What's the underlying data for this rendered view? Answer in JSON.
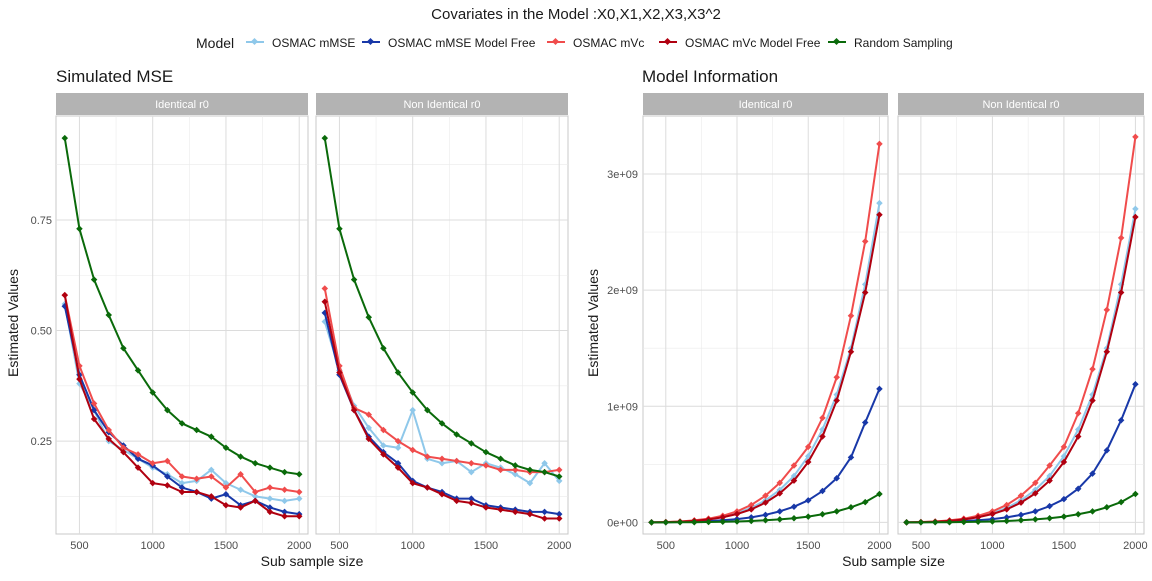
{
  "figure_title": "Covariates in the Model :X0,X1,X2,X3,X3^2",
  "legend": {
    "title": "Model",
    "items": [
      {
        "label": "OSMAC mMSE",
        "color": "#8FC8EA"
      },
      {
        "label": "OSMAC mMSE Model Free",
        "color": "#1838A8"
      },
      {
        "label": "OSMAC mVc",
        "color": "#F04C4C"
      },
      {
        "label": "OSMAC mVc Model Free",
        "color": "#B00010"
      },
      {
        "label": "Random Sampling",
        "color": "#0A6A0A"
      }
    ]
  },
  "chart_data": [
    {
      "type": "line",
      "title": "Simulated MSE",
      "xlabel": "Sub sample size",
      "ylabel": "Estimated Values",
      "x_ticks": [
        "500",
        "1000",
        "1500",
        "2000"
      ],
      "y_ticks": [
        "0.25",
        "0.50",
        "0.75"
      ],
      "xlim": [
        340,
        2060
      ],
      "ylim": [
        0.04,
        0.985
      ],
      "grid": true,
      "x": [
        400,
        500,
        600,
        700,
        800,
        900,
        1000,
        1100,
        1200,
        1300,
        1400,
        1500,
        1600,
        1700,
        1800,
        1900,
        2000
      ],
      "facets": [
        {
          "strip": "Identical r0",
          "series": [
            {
              "name": "OSMAC mMSE",
              "values": [
                0.56,
                0.38,
                0.32,
                0.25,
                0.23,
                0.21,
                0.19,
                0.175,
                0.155,
                0.16,
                0.185,
                0.155,
                0.14,
                0.125,
                0.12,
                0.115,
                0.12
              ]
            },
            {
              "name": "OSMAC mMSE Model Free",
              "values": [
                0.555,
                0.4,
                0.32,
                0.27,
                0.24,
                0.21,
                0.195,
                0.17,
                0.145,
                0.135,
                0.12,
                0.13,
                0.105,
                0.115,
                0.1,
                0.09,
                0.085
              ]
            },
            {
              "name": "OSMAC mVc",
              "values": [
                0.58,
                0.42,
                0.335,
                0.275,
                0.235,
                0.22,
                0.2,
                0.205,
                0.17,
                0.165,
                0.17,
                0.145,
                0.175,
                0.135,
                0.145,
                0.14,
                0.135
              ]
            },
            {
              "name": "OSMAC mVc Model Free",
              "values": [
                0.58,
                0.39,
                0.3,
                0.255,
                0.225,
                0.19,
                0.155,
                0.15,
                0.135,
                0.135,
                0.125,
                0.105,
                0.1,
                0.115,
                0.09,
                0.08,
                0.08
              ]
            },
            {
              "name": "Random Sampling",
              "values": [
                0.935,
                0.73,
                0.615,
                0.535,
                0.46,
                0.41,
                0.36,
                0.32,
                0.29,
                0.275,
                0.26,
                0.235,
                0.215,
                0.2,
                0.19,
                0.18,
                0.175
              ]
            }
          ]
        },
        {
          "strip": "Non Identical r0",
          "series": [
            {
              "name": "OSMAC mMSE",
              "values": [
                0.52,
                0.41,
                0.33,
                0.28,
                0.24,
                0.235,
                0.32,
                0.21,
                0.2,
                0.205,
                0.18,
                0.2,
                0.19,
                0.175,
                0.155,
                0.2,
                0.16
              ]
            },
            {
              "name": "OSMAC mMSE Model Free",
              "values": [
                0.54,
                0.4,
                0.32,
                0.26,
                0.225,
                0.2,
                0.16,
                0.145,
                0.135,
                0.12,
                0.12,
                0.105,
                0.1,
                0.095,
                0.09,
                0.09,
                0.085
              ]
            },
            {
              "name": "OSMAC mVc",
              "values": [
                0.595,
                0.42,
                0.325,
                0.31,
                0.275,
                0.25,
                0.23,
                0.215,
                0.21,
                0.205,
                0.2,
                0.195,
                0.185,
                0.185,
                0.18,
                0.18,
                0.185
              ]
            },
            {
              "name": "OSMAC mVc Model Free",
              "values": [
                0.565,
                0.405,
                0.32,
                0.255,
                0.22,
                0.19,
                0.155,
                0.145,
                0.13,
                0.115,
                0.11,
                0.1,
                0.095,
                0.09,
                0.085,
                0.075,
                0.075
              ]
            },
            {
              "name": "Random Sampling",
              "values": [
                0.935,
                0.73,
                0.615,
                0.53,
                0.46,
                0.405,
                0.36,
                0.32,
                0.29,
                0.265,
                0.245,
                0.225,
                0.21,
                0.195,
                0.185,
                0.18,
                0.17
              ]
            }
          ]
        }
      ]
    },
    {
      "type": "line",
      "title": "Model Information",
      "xlabel": "Sub sample size",
      "ylabel": "Estimated Values",
      "x_ticks": [
        "500",
        "1000",
        "1500",
        "2000"
      ],
      "y_ticks": [
        "0e+00",
        "1e+09",
        "2e+09",
        "3e+09"
      ],
      "xlim": [
        340,
        2060
      ],
      "ylim": [
        -100000000,
        3500000000
      ],
      "grid": true,
      "x": [
        400,
        500,
        600,
        700,
        800,
        900,
        1000,
        1100,
        1200,
        1300,
        1400,
        1500,
        1600,
        1700,
        1800,
        1900,
        2000
      ],
      "facets": [
        {
          "strip": "Identical r0",
          "series": [
            {
              "name": "OSMAC mMSE",
              "values": [
                0,
                2000000,
                7000000,
                15000000,
                28000000,
                50000000,
                80000000,
                125000000,
                190000000,
                280000000,
                400000000,
                570000000,
                800000000,
                1100000000,
                1500000000,
                2050000000,
                2750000000
              ]
            },
            {
              "name": "OSMAC mMSE Model Free",
              "values": [
                0,
                1000000,
                3000000,
                6000000,
                11000000,
                18000000,
                28000000,
                43000000,
                65000000,
                95000000,
                135000000,
                190000000,
                270000000,
                380000000,
                560000000,
                860000000,
                1150000000
              ]
            },
            {
              "name": "OSMAC mVc",
              "values": [
                0,
                3000000,
                8000000,
                17000000,
                32000000,
                57000000,
                95000000,
                150000000,
                230000000,
                340000000,
                490000000,
                650000000,
                900000000,
                1250000000,
                1780000000,
                2420000000,
                3260000000
              ]
            },
            {
              "name": "OSMAC mVc Model Free",
              "values": [
                0,
                2000000,
                6000000,
                13000000,
                25000000,
                44000000,
                72000000,
                112000000,
                170000000,
                250000000,
                360000000,
                520000000,
                740000000,
                1050000000,
                1470000000,
                1980000000,
                2650000000
              ]
            },
            {
              "name": "Random Sampling",
              "values": [
                0,
                300000,
                800000,
                1700000,
                3000000,
                5000000,
                8000000,
                12000000,
                18000000,
                26000000,
                36000000,
                50000000,
                70000000,
                95000000,
                130000000,
                175000000,
                245000000
              ]
            }
          ]
        },
        {
          "strip": "Non Identical r0",
          "series": [
            {
              "name": "OSMAC mMSE",
              "values": [
                0,
                2000000,
                7000000,
                15000000,
                28000000,
                50000000,
                80000000,
                125000000,
                190000000,
                280000000,
                400000000,
                570000000,
                800000000,
                1100000000,
                1500000000,
                2050000000,
                2700000000
              ]
            },
            {
              "name": "OSMAC mMSE Model Free",
              "values": [
                0,
                1000000,
                3000000,
                6000000,
                11000000,
                18000000,
                28000000,
                43000000,
                65000000,
                95000000,
                140000000,
                200000000,
                290000000,
                420000000,
                620000000,
                880000000,
                1190000000
              ]
            },
            {
              "name": "OSMAC mVc",
              "values": [
                0,
                3000000,
                8000000,
                17000000,
                32000000,
                57000000,
                95000000,
                150000000,
                230000000,
                340000000,
                490000000,
                650000000,
                940000000,
                1320000000,
                1830000000,
                2450000000,
                3320000000
              ]
            },
            {
              "name": "OSMAC mVc Model Free",
              "values": [
                0,
                2000000,
                6000000,
                13000000,
                25000000,
                44000000,
                72000000,
                112000000,
                170000000,
                250000000,
                360000000,
                520000000,
                740000000,
                1050000000,
                1470000000,
                1980000000,
                2630000000
              ]
            },
            {
              "name": "Random Sampling",
              "values": [
                0,
                300000,
                800000,
                1700000,
                3000000,
                5000000,
                8000000,
                12000000,
                18000000,
                26000000,
                36000000,
                50000000,
                70000000,
                95000000,
                130000000,
                175000000,
                245000000
              ]
            }
          ]
        }
      ]
    }
  ]
}
